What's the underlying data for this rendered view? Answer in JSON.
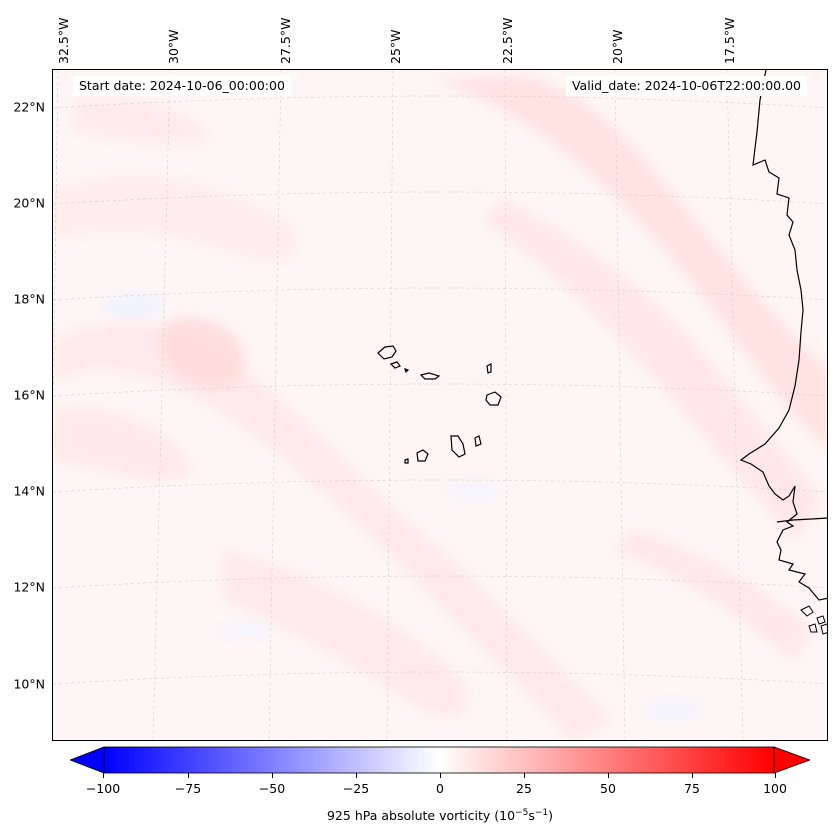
{
  "map": {
    "start_label": "Start date: 2024-10-06_00:00:00",
    "valid_label": "Valid_date: 2024-10-06T22:00:00.00",
    "background_color": "#fef6f6",
    "land_outline_color": "#000000",
    "longitude_labels": [
      "32.5°W",
      "30°W",
      "27.5°W",
      "25°W",
      "22.5°W",
      "20°W",
      "17.5°W"
    ],
    "latitude_labels": [
      "22°N",
      "20°N",
      "18°N",
      "16°N",
      "14°N",
      "12°N",
      "10°N"
    ],
    "features": [
      "cape-verde-islands",
      "west-african-coastline",
      "light-red-vorticity-bands"
    ]
  },
  "colorbar": {
    "min": -100,
    "max": 100,
    "ticks": [
      "−100",
      "−75",
      "−50",
      "−25",
      "0",
      "25",
      "50",
      "75",
      "100"
    ],
    "tick_values": [
      -100,
      -75,
      -50,
      -25,
      0,
      25,
      50,
      75,
      100
    ],
    "color_negative": "#0000ff",
    "color_zero": "#ffffff",
    "color_positive": "#ff0000",
    "label_main": "925 hPa absolute vorticity (10",
    "label_exp1": "−5",
    "label_mid": "s",
    "label_exp2": "−1",
    "label_end": ")"
  }
}
